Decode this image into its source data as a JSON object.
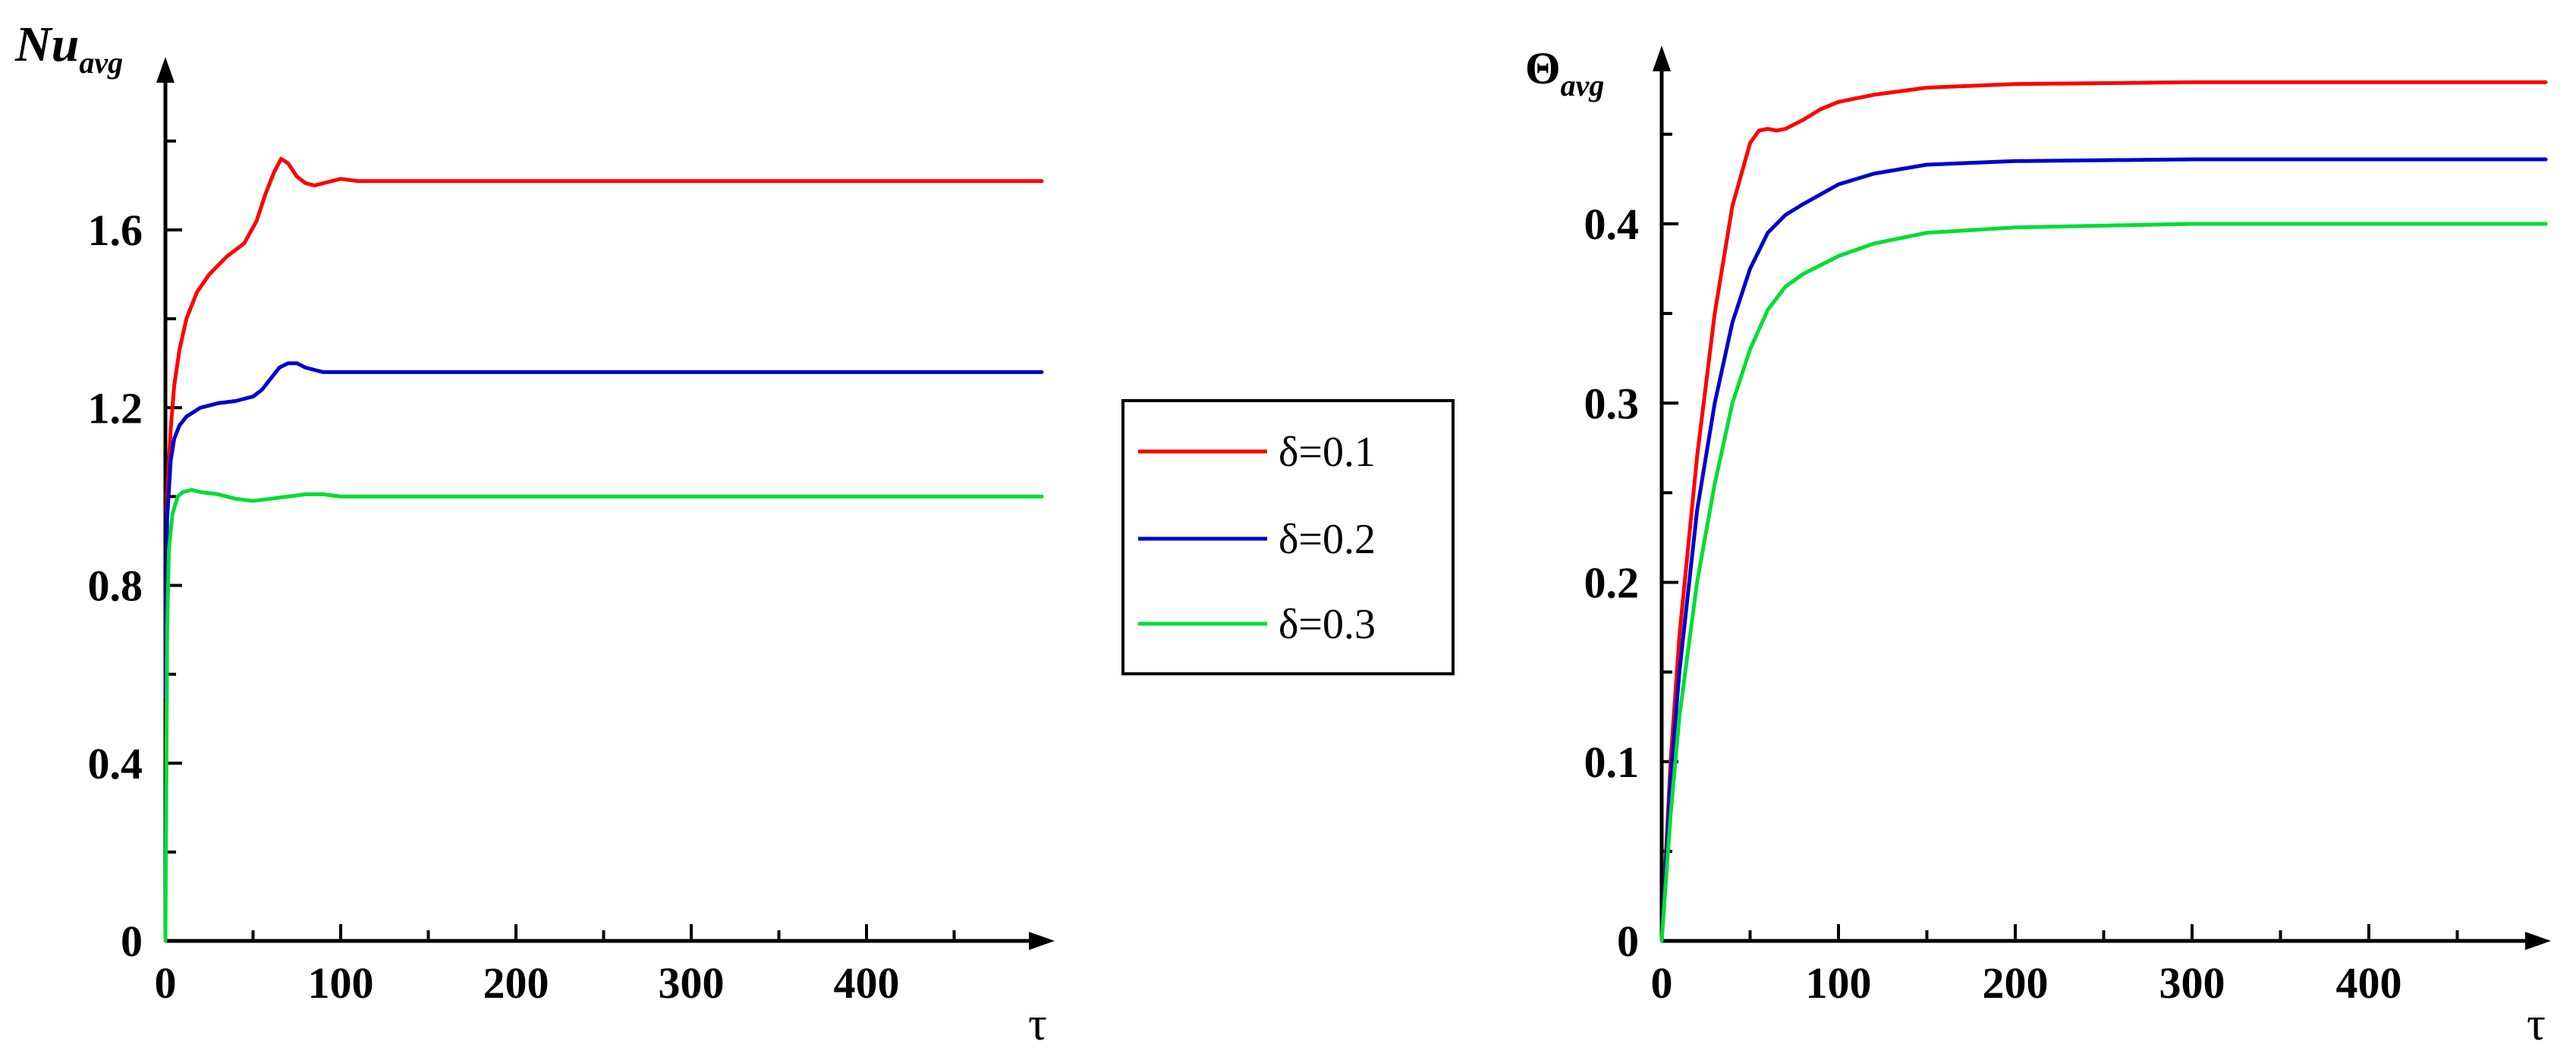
{
  "chart_data": [
    {
      "type": "line",
      "ylabel_main": "Nu",
      "ylabel_sub": "avg",
      "xlabel": "τ",
      "xlim": [
        0,
        500
      ],
      "ylim": [
        0,
        2.0
      ],
      "xticks": [
        0,
        100,
        200,
        300,
        400
      ],
      "xtick_labels": [
        "0",
        "100",
        "200",
        "300",
        "400"
      ],
      "yticks": [
        0,
        0.4,
        0.8,
        1.2,
        1.6
      ],
      "ytick_labels": [
        "0",
        "0.4",
        "0.8",
        "1.2",
        "1.6"
      ],
      "series": [
        {
          "name": "δ=0.1",
          "color": "#ff0000",
          "x": [
            0,
            1,
            3,
            5,
            8,
            12,
            18,
            25,
            35,
            45,
            52,
            57,
            62,
            66,
            70,
            75,
            80,
            85,
            90,
            100,
            110,
            130,
            160,
            200,
            300,
            400,
            500
          ],
          "y": [
            0.55,
            1.0,
            1.15,
            1.25,
            1.33,
            1.4,
            1.46,
            1.5,
            1.54,
            1.57,
            1.62,
            1.68,
            1.73,
            1.76,
            1.75,
            1.72,
            1.705,
            1.7,
            1.705,
            1.715,
            1.71,
            1.71,
            1.71,
            1.71,
            1.71,
            1.71,
            1.71
          ]
        },
        {
          "name": "δ=0.2",
          "color": "#0000cc",
          "x": [
            0,
            1,
            3,
            5,
            8,
            12,
            20,
            30,
            40,
            50,
            55,
            60,
            65,
            70,
            75,
            80,
            85,
            90,
            100,
            120,
            150,
            200,
            300,
            400,
            500
          ],
          "y": [
            0.55,
            0.95,
            1.08,
            1.13,
            1.16,
            1.18,
            1.2,
            1.21,
            1.215,
            1.225,
            1.24,
            1.265,
            1.29,
            1.3,
            1.3,
            1.29,
            1.285,
            1.28,
            1.28,
            1.28,
            1.28,
            1.28,
            1.28,
            1.28,
            1.28
          ]
        },
        {
          "name": "δ=0.3",
          "color": "#00dd33",
          "x": [
            0,
            1,
            2,
            4,
            7,
            10,
            15,
            20,
            30,
            40,
            50,
            60,
            70,
            80,
            90,
            100,
            120,
            150,
            200,
            300,
            400,
            500
          ],
          "y": [
            0.0,
            0.7,
            0.88,
            0.96,
            1.0,
            1.01,
            1.015,
            1.01,
            1.005,
            0.995,
            0.99,
            0.995,
            1.0,
            1.005,
            1.005,
            1.0,
            1.0,
            1.0,
            1.0,
            1.0,
            1.0,
            1.0
          ]
        }
      ]
    },
    {
      "type": "line",
      "ylabel_main": "Θ",
      "ylabel_sub": "avg",
      "xlabel": "τ",
      "xlim": [
        0,
        500
      ],
      "ylim": [
        0,
        0.5
      ],
      "xticks": [
        0,
        100,
        200,
        300,
        400
      ],
      "xtick_labels": [
        "0",
        "100",
        "200",
        "300",
        "400"
      ],
      "yticks": [
        0,
        0.1,
        0.2,
        0.3,
        0.4
      ],
      "ytick_labels": [
        "0",
        "0.1",
        "0.2",
        "0.3",
        "0.4"
      ],
      "series": [
        {
          "name": "δ=0.1",
          "color": "#ff0000",
          "x": [
            0,
            5,
            10,
            20,
            30,
            40,
            50,
            55,
            60,
            65,
            70,
            80,
            90,
            100,
            120,
            150,
            200,
            300,
            400,
            500
          ],
          "y": [
            0.0,
            0.1,
            0.17,
            0.27,
            0.35,
            0.41,
            0.445,
            0.452,
            0.453,
            0.452,
            0.453,
            0.458,
            0.464,
            0.468,
            0.472,
            0.476,
            0.478,
            0.479,
            0.479,
            0.479
          ]
        },
        {
          "name": "δ=0.2",
          "color": "#0000cc",
          "x": [
            0,
            5,
            10,
            20,
            30,
            40,
            50,
            60,
            70,
            80,
            100,
            120,
            150,
            200,
            300,
            400,
            500
          ],
          "y": [
            0.0,
            0.09,
            0.15,
            0.24,
            0.3,
            0.345,
            0.375,
            0.395,
            0.405,
            0.411,
            0.422,
            0.428,
            0.433,
            0.435,
            0.436,
            0.436,
            0.436
          ]
        },
        {
          "name": "δ=0.3",
          "color": "#00dd33",
          "x": [
            0,
            5,
            10,
            20,
            30,
            40,
            50,
            60,
            70,
            80,
            100,
            120,
            150,
            200,
            250,
            300,
            400,
            500
          ],
          "y": [
            0.0,
            0.07,
            0.125,
            0.2,
            0.255,
            0.3,
            0.33,
            0.352,
            0.365,
            0.372,
            0.382,
            0.389,
            0.395,
            0.398,
            0.399,
            0.4,
            0.4,
            0.4
          ]
        }
      ]
    }
  ],
  "legend": {
    "items": [
      {
        "label": "δ=0.1",
        "color": "#ff0000"
      },
      {
        "label": "δ=0.2",
        "color": "#0000cc"
      },
      {
        "label": "δ=0.3",
        "color": "#00dd33"
      }
    ]
  }
}
